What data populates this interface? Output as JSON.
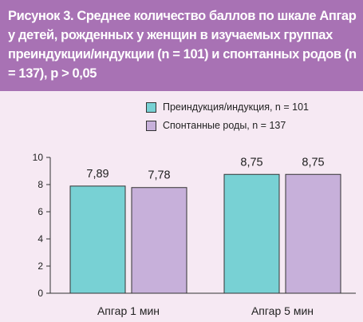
{
  "title": "Рисунок 3. Среднее количество баллов по шкале Апгар у детей, рожденных у женщин в изучаемых группах преиндукции/индукции (n = 101) и спонтанных родов (n = 137), p > 0,05",
  "colors": {
    "header_bg": "#a872b4",
    "page_bg": "#f6e9f3",
    "series_1": "#78d1d4",
    "series_2": "#c7b0da"
  },
  "chart_data": {
    "type": "bar",
    "categories": [
      "Апгар 1 мин",
      "Апгар 5 мин"
    ],
    "series": [
      {
        "name": "Преиндукция/индукция, n = 101",
        "values": [
          7.89,
          8.75
        ],
        "labels": [
          "7,89",
          "8,75"
        ]
      },
      {
        "name": "Спонтанные роды, n = 137",
        "values": [
          7.78,
          8.75
        ],
        "labels": [
          "7,78",
          "8,75"
        ]
      }
    ],
    "ylim": [
      0,
      10
    ],
    "yticks": [
      0,
      2,
      4,
      6,
      8,
      10
    ],
    "legend_position": "top-right",
    "grid": false
  }
}
